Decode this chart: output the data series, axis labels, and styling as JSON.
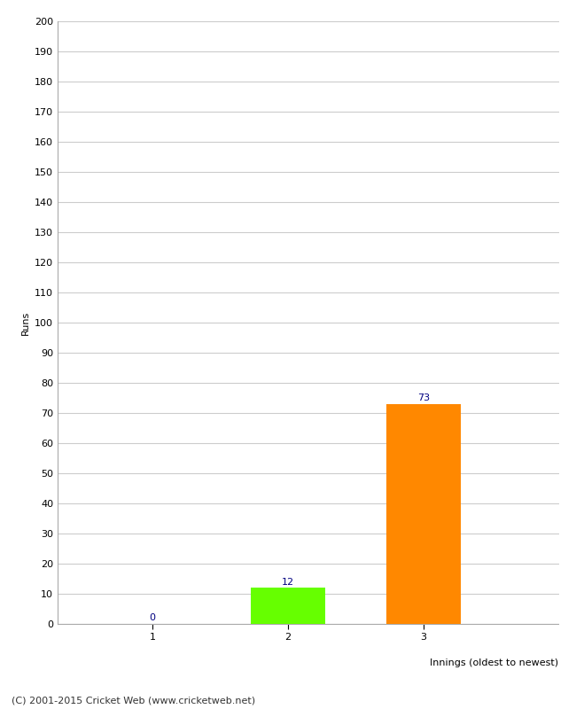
{
  "categories": [
    "1",
    "2",
    "3"
  ],
  "values": [
    0,
    12,
    73
  ],
  "bar_colors": [
    "#ff8800",
    "#66ff00",
    "#ff8800"
  ],
  "xlabel": "Innings (oldest to newest)",
  "ylabel": "Runs",
  "ylim": [
    0,
    200
  ],
  "yticks": [
    0,
    10,
    20,
    30,
    40,
    50,
    60,
    70,
    80,
    90,
    100,
    110,
    120,
    130,
    140,
    150,
    160,
    170,
    180,
    190,
    200
  ],
  "value_label_color": "#000080",
  "value_label_fontsize": 8,
  "axis_label_fontsize": 8,
  "tick_label_fontsize": 8,
  "footer": "(C) 2001-2015 Cricket Web (www.cricketweb.net)",
  "background_color": "#ffffff",
  "grid_color": "#cccccc",
  "bar_width": 0.55,
  "x_positions": [
    1,
    2,
    3
  ],
  "xlim": [
    0.3,
    4.0
  ]
}
